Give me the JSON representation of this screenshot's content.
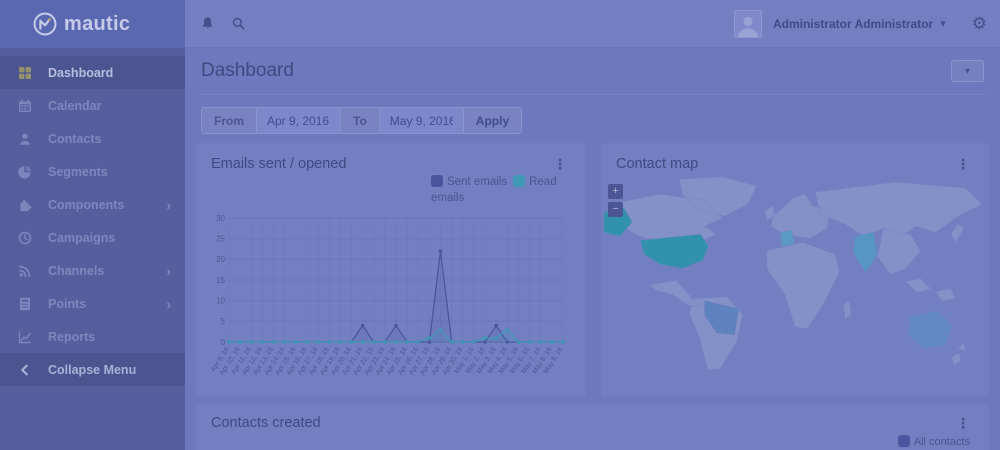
{
  "brand": {
    "name": "mautic"
  },
  "topbar": {
    "user_name": "Administrator Administrator"
  },
  "icons": {
    "gear_glyph": "⚙",
    "caret_glyph": "▾",
    "kebab_glyph": "⋮",
    "chevron_right_glyph": "›",
    "zoom_in_glyph": "+",
    "zoom_out_glyph": "−"
  },
  "colors": {
    "active_icon": "#94906e",
    "sent_series": "#4a549d",
    "read_series": "#3f98b6"
  },
  "sidebar": {
    "items": [
      {
        "slug": "dashboard",
        "label": "Dashboard",
        "icon": "grid",
        "active": true,
        "has_submenu": false,
        "footer": false
      },
      {
        "slug": "calendar",
        "label": "Calendar",
        "icon": "calendar",
        "active": false,
        "has_submenu": false,
        "footer": false
      },
      {
        "slug": "contacts",
        "label": "Contacts",
        "icon": "user",
        "active": false,
        "has_submenu": false,
        "footer": false
      },
      {
        "slug": "segments",
        "label": "Segments",
        "icon": "pie",
        "active": false,
        "has_submenu": false,
        "footer": false
      },
      {
        "slug": "components",
        "label": "Components",
        "icon": "puzzle",
        "active": false,
        "has_submenu": true,
        "footer": false
      },
      {
        "slug": "campaigns",
        "label": "Campaigns",
        "icon": "clock",
        "active": false,
        "has_submenu": false,
        "footer": false
      },
      {
        "slug": "channels",
        "label": "Channels",
        "icon": "broadcast",
        "active": false,
        "has_submenu": true,
        "footer": false
      },
      {
        "slug": "points",
        "label": "Points",
        "icon": "calculator",
        "active": false,
        "has_submenu": true,
        "footer": false
      },
      {
        "slug": "reports",
        "label": "Reports",
        "icon": "line-chart",
        "active": false,
        "has_submenu": false,
        "footer": false
      },
      {
        "slug": "collapse-menu",
        "label": "Collapse Menu",
        "icon": "chevron-left",
        "active": false,
        "has_submenu": false,
        "footer": true
      }
    ]
  },
  "page": {
    "title": "Dashboard"
  },
  "filter": {
    "from_label": "From",
    "from_value": "Apr 9, 2016",
    "to_label": "To",
    "to_value": "May 9, 2016",
    "apply_label": "Apply"
  },
  "panels": {
    "emails": {
      "title": "Emails sent / opened",
      "legend": [
        {
          "label": "Sent emails",
          "color": "#4a549d"
        },
        {
          "label": "Read emails",
          "color": "#3f98b6"
        }
      ]
    },
    "map": {
      "title": "Contact map",
      "land_color": "#8490c8",
      "regions": [
        {
          "name": "United States",
          "color": "#3292ad"
        },
        {
          "name": "Brazil",
          "color": "#5e82bd"
        },
        {
          "name": "France",
          "color": "#5b9ac2"
        },
        {
          "name": "India",
          "color": "#5796c2"
        },
        {
          "name": "Australia",
          "color": "#6389c3"
        }
      ]
    },
    "contacts": {
      "title": "Contacts created",
      "legend": [
        {
          "label": "All contacts",
          "color": "#4c56a0"
        }
      ]
    }
  },
  "chart_data": {
    "type": "line",
    "title": "Emails sent / opened",
    "categories": [
      "Apr 9, 16",
      "Apr 10, 16",
      "Apr 11, 16",
      "Apr 12, 16",
      "Apr 13, 16",
      "Apr 14, 16",
      "Apr 15, 16",
      "Apr 16, 16",
      "Apr 17, 16",
      "Apr 18, 16",
      "Apr 19, 16",
      "Apr 20, 16",
      "Apr 21, 16",
      "Apr 22, 16",
      "Apr 23, 16",
      "Apr 24, 16",
      "Apr 25, 16",
      "Apr 26, 16",
      "Apr 27, 16",
      "Apr 28, 16",
      "Apr 29, 16",
      "Apr 30, 16",
      "May 1, 16",
      "May 2, 16",
      "May 3, 16",
      "May 4, 16",
      "May 5, 16",
      "May 6, 16",
      "May 7, 16",
      "May 8, 16",
      "May 9, 16"
    ],
    "series": [
      {
        "name": "Sent emails",
        "color": "#4a549d",
        "values": [
          0,
          0,
          0,
          0,
          0,
          0,
          0,
          0,
          0,
          0,
          0,
          0,
          4,
          0,
          0,
          4,
          0,
          0,
          0,
          22,
          0,
          0,
          0,
          0,
          4,
          0,
          0,
          0,
          0,
          0,
          0
        ]
      },
      {
        "name": "Read emails",
        "color": "#3f98b6",
        "values": [
          0,
          0,
          0,
          0,
          0,
          0,
          0,
          0,
          0,
          0,
          0,
          0,
          0,
          0,
          0,
          0,
          0,
          0,
          1,
          3,
          0,
          0,
          0,
          1,
          1,
          3,
          0,
          0,
          0,
          0,
          0
        ]
      }
    ],
    "ylabel": "",
    "xlabel": "",
    "ylim": [
      0,
      30
    ],
    "yticks": [
      0,
      5,
      10,
      15,
      20,
      25,
      30
    ],
    "grid": true,
    "legend_position": "top-right"
  }
}
